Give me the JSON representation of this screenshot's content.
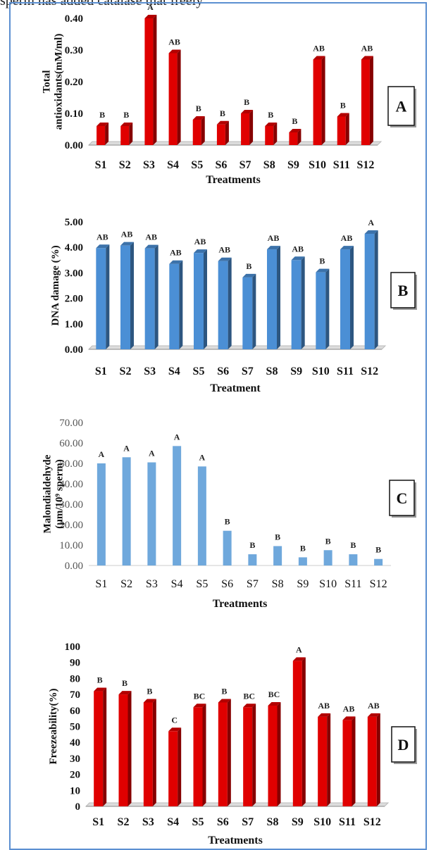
{
  "top_text": "sperm has added catalase that freely",
  "chart_data": [
    {
      "panel": "A",
      "type": "bar",
      "categories": [
        "S1",
        "S2",
        "S3",
        "S4",
        "S5",
        "S6",
        "S7",
        "S8",
        "S9",
        "S10",
        "S11",
        "S12"
      ],
      "values": [
        0.06,
        0.06,
        0.4,
        0.29,
        0.08,
        0.065,
        0.1,
        0.06,
        0.04,
        0.27,
        0.09,
        0.27
      ],
      "letters": [
        "B",
        "B",
        "A",
        "AB",
        "B",
        "B",
        "B",
        "B",
        "B",
        "AB",
        "B",
        "AB"
      ],
      "ylabel_lines": [
        "Total",
        "antioxidants(mM/ml)"
      ],
      "xlabel": "Treatments",
      "yticks": [
        "0.00",
        "0.10",
        "0.20",
        "0.30",
        "0.40"
      ],
      "ylim": [
        0,
        0.4
      ],
      "color": "#e00000",
      "style": "3d"
    },
    {
      "panel": "B",
      "type": "bar",
      "categories": [
        "S1",
        "S2",
        "S3",
        "S4",
        "S5",
        "S6",
        "S7",
        "S8",
        "S9",
        "S10",
        "S11",
        "S12"
      ],
      "values": [
        3.97,
        4.07,
        3.96,
        3.35,
        3.78,
        3.46,
        2.82,
        3.92,
        3.5,
        3.02,
        3.92,
        4.53
      ],
      "letters": [
        "AB",
        "AB",
        "AB",
        "AB",
        "AB",
        "AB",
        "B",
        "AB",
        "AB",
        "B",
        "AB",
        "A"
      ],
      "ylabel_lines": [
        "DNA damage (%)"
      ],
      "xlabel": "Treatment",
      "yticks": [
        "0.00",
        "1.00",
        "2.00",
        "3.00",
        "4.00",
        "5.00"
      ],
      "ylim": [
        0,
        5
      ],
      "color": "#4b8fd5",
      "style": "3d"
    },
    {
      "panel": "C",
      "type": "bar",
      "categories": [
        "S1",
        "S2",
        "S3",
        "S4",
        "S5",
        "S6",
        "S7",
        "S8",
        "S9",
        "S10",
        "S11",
        "S12"
      ],
      "values": [
        50.0,
        53.0,
        50.5,
        58.5,
        48.5,
        17.0,
        5.5,
        9.5,
        4.0,
        7.5,
        5.5,
        3.2
      ],
      "letters": [
        "A",
        "A",
        "A",
        "A",
        "A",
        "B",
        "B",
        "B",
        "B",
        "B",
        "B",
        "B"
      ],
      "ylabel_lines": [
        "Malondialdehyde",
        "(µm/10⁹ sperm)"
      ],
      "xlabel": "Treatments",
      "yticks": [
        "0.00",
        "10.00",
        "20.00",
        "30.00",
        "40.00",
        "50.00",
        "60.00",
        "70.00"
      ],
      "ylim": [
        0,
        70
      ],
      "color": "#6fa8dc",
      "style": "flat"
    },
    {
      "panel": "D",
      "type": "bar",
      "categories": [
        "S1",
        "S2",
        "S3",
        "S4",
        "S5",
        "S6",
        "S7",
        "S8",
        "S9",
        "S10",
        "S11",
        "S12"
      ],
      "values": [
        72,
        70,
        65,
        47,
        62,
        65,
        62,
        63,
        91,
        56,
        54,
        56
      ],
      "letters": [
        "B",
        "B",
        "B",
        "C",
        "BC",
        "B",
        "BC",
        "BC",
        "A",
        "AB",
        "AB",
        "AB"
      ],
      "ylabel_lines": [
        "Freezeability(%)"
      ],
      "xlabel": "Treatments",
      "yticks": [
        "0",
        "10",
        "20",
        "30",
        "40",
        "50",
        "60",
        "70",
        "80",
        "90",
        "100"
      ],
      "ylim": [
        0,
        100
      ],
      "color": "#e00000",
      "style": "3d"
    }
  ]
}
